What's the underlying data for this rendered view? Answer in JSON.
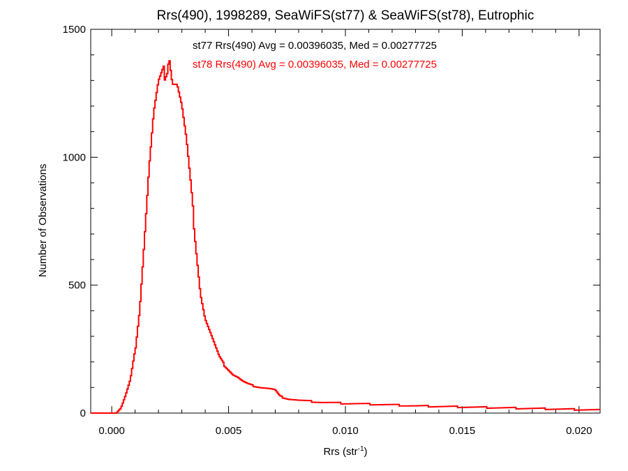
{
  "chart_data": {
    "type": "histogram-step",
    "title": "Rrs(490), 1998289, SeaWiFS(st77) & SeaWiFS(st78), Eutrophic",
    "xlabel": {
      "main": "Rrs (str",
      "superscript": "-1",
      "close": ")"
    },
    "ylabel": "Number of Observations",
    "xlim": [
      -0.0009,
      0.0209
    ],
    "ylim": [
      0,
      1500
    ],
    "xticks": [
      {
        "value": 0.0,
        "label": "0.000"
      },
      {
        "value": 0.005,
        "label": "0.005"
      },
      {
        "value": 0.01,
        "label": "0.010"
      },
      {
        "value": 0.015,
        "label": "0.015"
      },
      {
        "value": 0.02,
        "label": "0.020"
      }
    ],
    "yticks": [
      {
        "value": 0,
        "label": "0"
      },
      {
        "value": 500,
        "label": "500"
      },
      {
        "value": 1000,
        "label": "1000"
      },
      {
        "value": 1500,
        "label": "1500"
      }
    ],
    "grid": false,
    "annotations": [
      {
        "text": "st77 Rrs(490) Avg = 0.00396035, Med = 0.00277725",
        "color": "#000000"
      },
      {
        "text": "st78 Rrs(490) Avg = 0.00396035, Med = 0.00277725",
        "color": "#ff0000"
      }
    ],
    "series": [
      {
        "color": "#ff0000",
        "points": [
          [
            -0.0009,
            0
          ],
          [
            0.0002,
            0
          ],
          [
            0.0004,
            20
          ],
          [
            0.0006,
            70
          ],
          [
            0.0008,
            130
          ],
          [
            0.001,
            240
          ],
          [
            0.0012,
            410
          ],
          [
            0.0014,
            680
          ],
          [
            0.0016,
            960
          ],
          [
            0.0018,
            1170
          ],
          [
            0.002,
            1280
          ],
          [
            0.0022,
            1320
          ],
          [
            0.0024,
            1360
          ],
          [
            0.00245,
            1420
          ],
          [
            0.0026,
            1300
          ],
          [
            0.0028,
            1290
          ],
          [
            0.003,
            1200
          ],
          [
            0.0032,
            1060
          ],
          [
            0.0034,
            870
          ],
          [
            0.0036,
            660
          ],
          [
            0.0038,
            470
          ],
          [
            0.004,
            370
          ],
          [
            0.0042,
            320
          ],
          [
            0.0044,
            270
          ],
          [
            0.0046,
            220
          ],
          [
            0.0048,
            190
          ],
          [
            0.005,
            170
          ],
          [
            0.0052,
            150
          ],
          [
            0.0054,
            140
          ],
          [
            0.0056,
            125
          ],
          [
            0.0058,
            115
          ],
          [
            0.006,
            108
          ],
          [
            0.0064,
            100
          ],
          [
            0.0068,
            95
          ],
          [
            0.007,
            90
          ],
          [
            0.0072,
            65
          ],
          [
            0.0076,
            55
          ],
          [
            0.008,
            50
          ],
          [
            0.009,
            42
          ],
          [
            0.01,
            38
          ],
          [
            0.011,
            35
          ],
          [
            0.012,
            32
          ],
          [
            0.013,
            28
          ],
          [
            0.014,
            26
          ],
          [
            0.015,
            24
          ],
          [
            0.016,
            22
          ],
          [
            0.017,
            20
          ],
          [
            0.018,
            18
          ],
          [
            0.019,
            16
          ],
          [
            0.02,
            14
          ],
          [
            0.0209,
            12
          ]
        ]
      }
    ]
  }
}
